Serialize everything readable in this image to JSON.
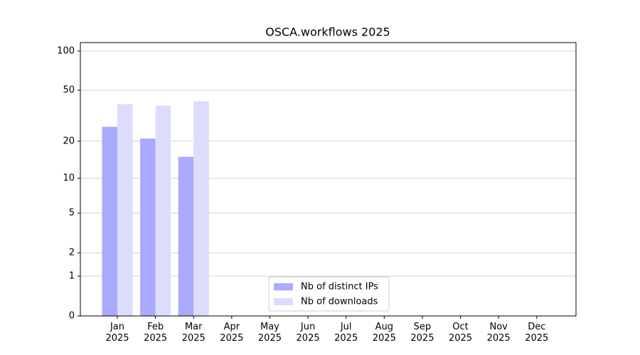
{
  "chart_data": {
    "type": "bar",
    "title": "OSCA.workflows 2025",
    "categories": [
      "Jan\n2025",
      "Feb\n2025",
      "Mar\n2025",
      "Apr\n2025",
      "May\n2025",
      "Jun\n2025",
      "Jul\n2025",
      "Aug\n2025",
      "Sep\n2025",
      "Oct\n2025",
      "Nov\n2025",
      "Dec\n2025"
    ],
    "series": [
      {
        "name": "Nb of distinct IPs",
        "color": "#aaaaff",
        "values": [
          26,
          21,
          15,
          null,
          null,
          null,
          null,
          null,
          null,
          null,
          null,
          null
        ]
      },
      {
        "name": "Nb of downloads",
        "color": "#dcdcfc",
        "values": [
          39,
          38,
          41,
          null,
          null,
          null,
          null,
          null,
          null,
          null,
          null,
          null
        ]
      }
    ],
    "yscale": "log1p",
    "ylim": [
      0,
      116
    ],
    "yticks": [
      0,
      1,
      2,
      5,
      10,
      20,
      50,
      100
    ],
    "grid": true,
    "legend": "bottom"
  }
}
